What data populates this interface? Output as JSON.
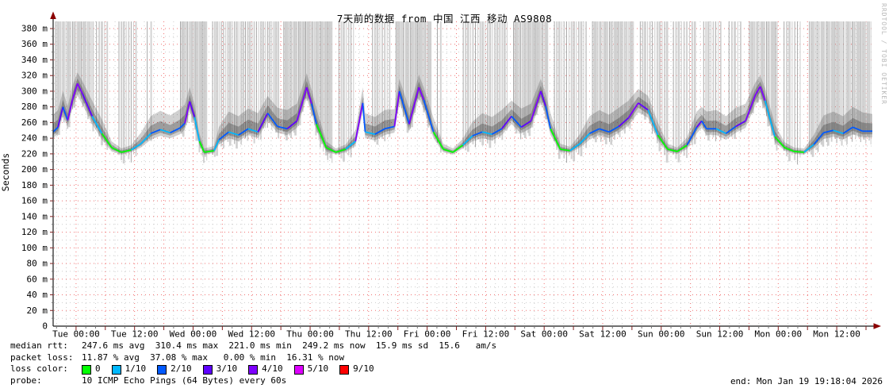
{
  "title": "7天前的数据 from 中国 江西 移动 AS9808",
  "watermark": "RRDTOOL / TOBI OETIKER",
  "end_text": "end: Mon Jan 19 19:18:04 2026",
  "stats": {
    "median_label": "median rtt:",
    "median_values": "247.6 ms avg  310.4 ms max  221.0 ms min  249.2 ms now  15.9 ms sd  15.6   am/s",
    "loss_label": "packet loss:",
    "loss_values": "11.87 % avg  37.08 % max   0.00 % min  16.31 % now",
    "probe_label": "probe:",
    "probe_value": "10 ICMP Echo Pings (64 Bytes) every 60s"
  },
  "loss_legend": {
    "label": "loss color:",
    "items": [
      {
        "label": "0",
        "color": "#00ff00"
      },
      {
        "label": "1/10",
        "color": "#00b8ff"
      },
      {
        "label": "2/10",
        "color": "#0059ff"
      },
      {
        "label": "3/10",
        "color": "#5e00ff"
      },
      {
        "label": "4/10",
        "color": "#7e00ff"
      },
      {
        "label": "5/10",
        "color": "#dd00ff"
      },
      {
        "label": "9/10",
        "color": "#ff0000"
      }
    ]
  },
  "chart_data": {
    "type": "line",
    "title": "7天前的数据 from 中国 江西 移动 AS9808",
    "ylabel": "Seconds",
    "ylim": [
      0,
      380
    ],
    "y_major_step": 20,
    "y_minor_step": 10,
    "y_unit_suffix": " m",
    "grid": true,
    "x_total_hours": 168,
    "x_first_label_hour": 4.7,
    "x_label_step_hours": 12,
    "x_major_grid_hours": 6,
    "x_minor_grid_hours": 2,
    "x_tick_labels": [
      "Tue 00:00",
      "Tue 12:00",
      "Wed 00:00",
      "Wed 12:00",
      "Thu 00:00",
      "Thu 12:00",
      "Fri 00:00",
      "Fri 12:00",
      "Sat 00:00",
      "Sat 12:00",
      "Sun 00:00",
      "Sun 12:00",
      "Mon 00:00",
      "Mon 12:00"
    ],
    "series_name": "median rtt",
    "stats": {
      "avg_ms": 247.6,
      "max_ms": 310.4,
      "min_ms": 221.0,
      "now_ms": 249.2,
      "sd_ms": 15.9,
      "am_s": 15.6,
      "loss_avg_pct": 11.87,
      "loss_max_pct": 37.08,
      "loss_min_pct": 0.0,
      "loss_now_pct": 16.31
    },
    "loss_colors": {
      "0": "#00ff00",
      "1": "#00b8ff",
      "2": "#0059ff",
      "3": "#5e00ff",
      "4": "#7e00ff",
      "5": "#dd00ff",
      "9": "#ff0000"
    },
    "points_format": [
      "hour",
      "median_ms",
      "smoke_up_ms",
      "smoke_down_ms",
      "loss_level"
    ],
    "points": [
      [
        0,
        248,
        22,
        8,
        2
      ],
      [
        1,
        254,
        22,
        8,
        2
      ],
      [
        2,
        280,
        20,
        12,
        3
      ],
      [
        3,
        263,
        18,
        8,
        2
      ],
      [
        4,
        290,
        18,
        10,
        4
      ],
      [
        5,
        310,
        14,
        16,
        4
      ],
      [
        6,
        297,
        16,
        14,
        4
      ],
      [
        8,
        268,
        20,
        10,
        3
      ],
      [
        10,
        246,
        18,
        8,
        1
      ],
      [
        12,
        228,
        8,
        5,
        0
      ],
      [
        14,
        222,
        5,
        3,
        0
      ],
      [
        16,
        225,
        6,
        3,
        0
      ],
      [
        18,
        233,
        14,
        5,
        1
      ],
      [
        20,
        246,
        22,
        8,
        1
      ],
      [
        22,
        251,
        24,
        8,
        2
      ],
      [
        24,
        247,
        22,
        7,
        1
      ],
      [
        26,
        253,
        24,
        8,
        2
      ],
      [
        27,
        259,
        24,
        8,
        2
      ],
      [
        28,
        287,
        18,
        12,
        4
      ],
      [
        29,
        267,
        16,
        10,
        3
      ],
      [
        30,
        236,
        10,
        6,
        1
      ],
      [
        31,
        222,
        5,
        3,
        0
      ],
      [
        33,
        224,
        6,
        3,
        0
      ],
      [
        34,
        238,
        16,
        6,
        1
      ],
      [
        36,
        248,
        26,
        8,
        2
      ],
      [
        38,
        244,
        24,
        8,
        1
      ],
      [
        40,
        252,
        26,
        8,
        2
      ],
      [
        42,
        248,
        24,
        8,
        1
      ],
      [
        44,
        272,
        22,
        10,
        3
      ],
      [
        46,
        255,
        24,
        8,
        2
      ],
      [
        48,
        252,
        24,
        8,
        2
      ],
      [
        50,
        262,
        22,
        9,
        3
      ],
      [
        52,
        305,
        18,
        14,
        4
      ],
      [
        53,
        284,
        18,
        12,
        4
      ],
      [
        54,
        258,
        20,
        8,
        2
      ],
      [
        56,
        228,
        8,
        5,
        0
      ],
      [
        58,
        222,
        5,
        3,
        0
      ],
      [
        60,
        226,
        6,
        4,
        0
      ],
      [
        62,
        236,
        14,
        6,
        1
      ],
      [
        63.5,
        285,
        20,
        12,
        4
      ],
      [
        64,
        248,
        24,
        8,
        2
      ],
      [
        66,
        245,
        22,
        8,
        1
      ],
      [
        68,
        252,
        24,
        8,
        2
      ],
      [
        70,
        255,
        22,
        8,
        2
      ],
      [
        71,
        300,
        16,
        14,
        4
      ],
      [
        73,
        258,
        20,
        9,
        2
      ],
      [
        75,
        305,
        16,
        14,
        4
      ],
      [
        76,
        289,
        16,
        12,
        4
      ],
      [
        78,
        248,
        18,
        8,
        2
      ],
      [
        80,
        226,
        7,
        4,
        0
      ],
      [
        82,
        222,
        5,
        3,
        0
      ],
      [
        84,
        231,
        8,
        4,
        0
      ],
      [
        86,
        243,
        18,
        7,
        1
      ],
      [
        88,
        248,
        24,
        8,
        2
      ],
      [
        90,
        245,
        22,
        8,
        1
      ],
      [
        92,
        252,
        24,
        8,
        2
      ],
      [
        94,
        268,
        20,
        10,
        3
      ],
      [
        96,
        254,
        24,
        8,
        2
      ],
      [
        98,
        262,
        22,
        9,
        3
      ],
      [
        100,
        300,
        16,
        14,
        4
      ],
      [
        101,
        281,
        16,
        12,
        3
      ],
      [
        102,
        252,
        20,
        8,
        2
      ],
      [
        104,
        226,
        7,
        4,
        0
      ],
      [
        106,
        224,
        5,
        3,
        0
      ],
      [
        108,
        233,
        12,
        5,
        1
      ],
      [
        110,
        246,
        22,
        8,
        1
      ],
      [
        112,
        252,
        24,
        8,
        2
      ],
      [
        114,
        248,
        22,
        8,
        2
      ],
      [
        116,
        255,
        24,
        8,
        2
      ],
      [
        118,
        266,
        22,
        10,
        3
      ],
      [
        120,
        285,
        18,
        12,
        4
      ],
      [
        122,
        276,
        18,
        10,
        3
      ],
      [
        124,
        244,
        16,
        7,
        1
      ],
      [
        126,
        226,
        7,
        4,
        0
      ],
      [
        128,
        223,
        5,
        3,
        0
      ],
      [
        130,
        231,
        10,
        5,
        0
      ],
      [
        132,
        254,
        20,
        8,
        2
      ],
      [
        133,
        262,
        18,
        9,
        3
      ],
      [
        134,
        252,
        22,
        8,
        2
      ],
      [
        136,
        252,
        24,
        8,
        2
      ],
      [
        138,
        246,
        22,
        8,
        1
      ],
      [
        140,
        255,
        24,
        8,
        2
      ],
      [
        142,
        262,
        22,
        9,
        3
      ],
      [
        144,
        295,
        16,
        13,
        4
      ],
      [
        145,
        306,
        14,
        15,
        4
      ],
      [
        146,
        288,
        16,
        12,
        4
      ],
      [
        148,
        242,
        16,
        7,
        1
      ],
      [
        150,
        228,
        7,
        4,
        0
      ],
      [
        152,
        223,
        5,
        3,
        0
      ],
      [
        154,
        222,
        5,
        3,
        0
      ],
      [
        156,
        232,
        12,
        5,
        1
      ],
      [
        158,
        247,
        22,
        8,
        2
      ],
      [
        160,
        250,
        24,
        8,
        2
      ],
      [
        162,
        246,
        22,
        8,
        1
      ],
      [
        164,
        254,
        26,
        9,
        2
      ],
      [
        166,
        249,
        24,
        8,
        2
      ],
      [
        168,
        249,
        22,
        8,
        2
      ]
    ],
    "loss_bar_clusters_hours": [
      [
        0.5,
        8.3,
        0.35
      ],
      [
        8.9,
        11.2,
        0.55
      ],
      [
        13.5,
        17.0,
        0.5
      ],
      [
        19.3,
        20.6,
        0.8
      ],
      [
        26.1,
        31.7,
        0.3
      ],
      [
        32.7,
        46.3,
        0.45
      ],
      [
        47.3,
        57.3,
        0.3
      ],
      [
        58.6,
        61.9,
        0.5
      ],
      [
        65.5,
        69.0,
        0.5
      ],
      [
        70.3,
        77.6,
        0.3
      ],
      [
        78.8,
        80.0,
        0.7
      ],
      [
        84.1,
        93.1,
        0.5
      ],
      [
        94.4,
        101.5,
        0.3
      ],
      [
        102.8,
        109.6,
        0.5
      ],
      [
        110.6,
        119.1,
        0.35
      ],
      [
        120.4,
        125.9,
        0.5
      ],
      [
        127.2,
        131.7,
        0.55
      ],
      [
        133.4,
        137.3,
        0.5
      ],
      [
        138.6,
        141.0,
        0.6
      ],
      [
        142.8,
        148.6,
        0.35
      ],
      [
        149.9,
        153.5,
        0.55
      ],
      [
        155.1,
        167.8,
        0.35
      ]
    ]
  }
}
